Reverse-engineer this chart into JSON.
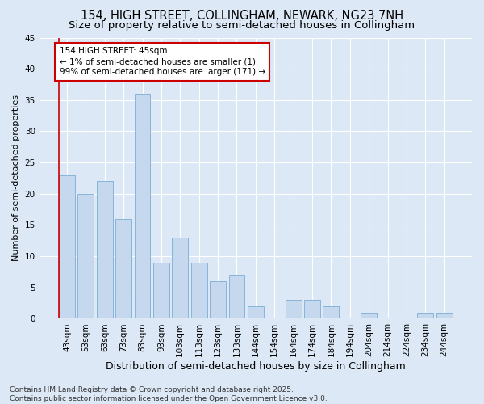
{
  "title1": "154, HIGH STREET, COLLINGHAM, NEWARK, NG23 7NH",
  "title2": "Size of property relative to semi-detached houses in Collingham",
  "xlabel": "Distribution of semi-detached houses by size in Collingham",
  "ylabel": "Number of semi-detached properties",
  "bar_color": "#c5d8ed",
  "bar_edge_color": "#7aadd4",
  "background_color": "#dce8f5",
  "grid_color": "#ffffff",
  "categories": [
    "43sqm",
    "53sqm",
    "63sqm",
    "73sqm",
    "83sqm",
    "93sqm",
    "103sqm",
    "113sqm",
    "123sqm",
    "133sqm",
    "144sqm",
    "154sqm",
    "164sqm",
    "174sqm",
    "184sqm",
    "194sqm",
    "204sqm",
    "214sqm",
    "224sqm",
    "234sqm",
    "244sqm"
  ],
  "values": [
    23,
    20,
    22,
    16,
    36,
    9,
    13,
    9,
    6,
    7,
    2,
    0,
    3,
    3,
    2,
    0,
    1,
    0,
    0,
    1,
    1
  ],
  "highlight_index": 0,
  "annotation_text": "154 HIGH STREET: 45sqm\n← 1% of semi-detached houses are smaller (1)\n99% of semi-detached houses are larger (171) →",
  "annotation_box_color": "#ffffff",
  "annotation_box_edge_color": "#cc0000",
  "footer_text": "Contains HM Land Registry data © Crown copyright and database right 2025.\nContains public sector information licensed under the Open Government Licence v3.0.",
  "ylim": [
    0,
    45
  ],
  "yticks": [
    0,
    5,
    10,
    15,
    20,
    25,
    30,
    35,
    40,
    45
  ],
  "title1_fontsize": 10.5,
  "title2_fontsize": 9.5,
  "xlabel_fontsize": 9,
  "ylabel_fontsize": 8,
  "tick_fontsize": 7.5,
  "annotation_fontsize": 7.5,
  "footer_fontsize": 6.5
}
